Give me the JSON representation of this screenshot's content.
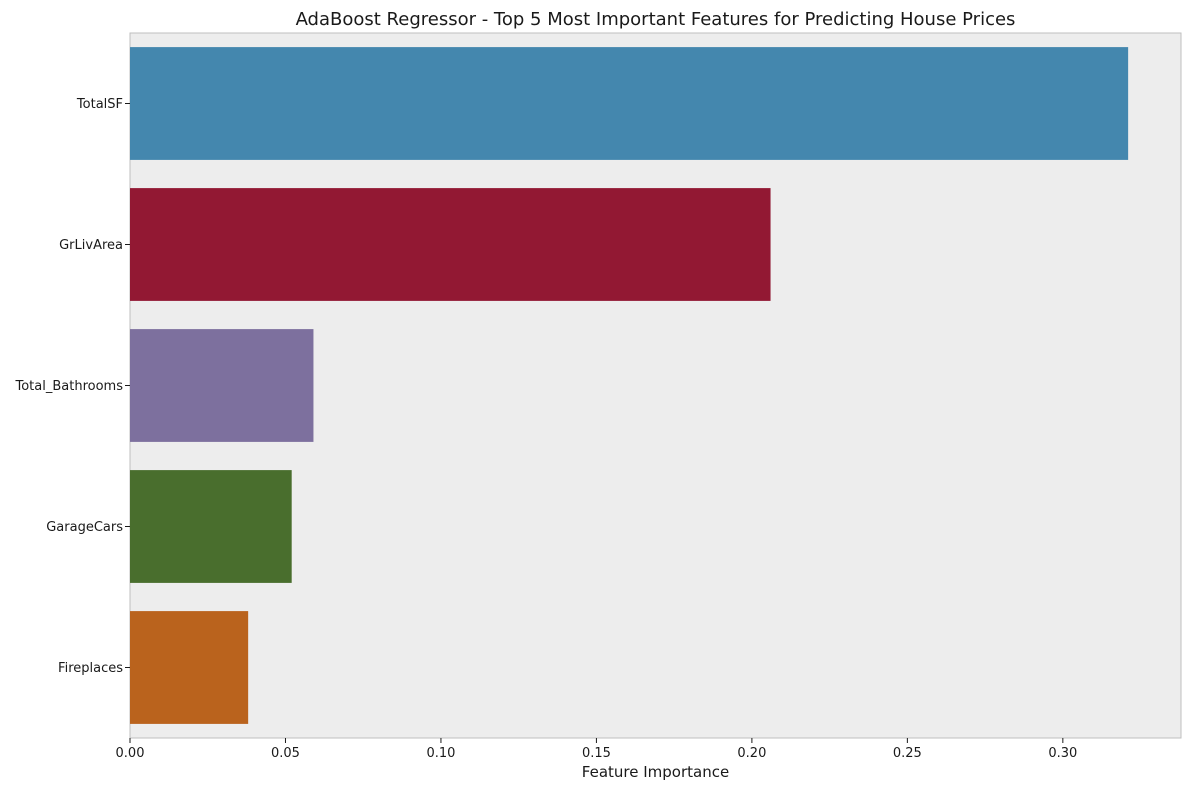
{
  "chart_data": {
    "type": "bar",
    "orientation": "horizontal",
    "title": "AdaBoost Regressor - Top 5 Most Important Features for Predicting House Prices",
    "xlabel": "Feature Importance",
    "ylabel": "",
    "categories": [
      "TotalSF",
      "GrLivArea",
      "Total_Bathrooms",
      "GarageCars",
      "Fireplaces"
    ],
    "values": [
      0.321,
      0.206,
      0.059,
      0.052,
      0.038
    ],
    "colors": [
      "#4487ae",
      "#921833",
      "#7d709e",
      "#496e2d",
      "#ba631d"
    ],
    "xlim": [
      0,
      0.338
    ],
    "x_ticks": [
      "0.00",
      "0.05",
      "0.10",
      "0.15",
      "0.20",
      "0.25",
      "0.30"
    ],
    "grid": false,
    "legend": "none",
    "plot_background": "#ededed"
  }
}
